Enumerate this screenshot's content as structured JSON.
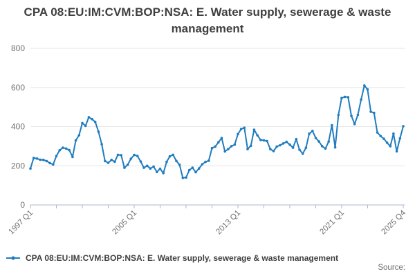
{
  "title": "CPA 08:EU:IM:CVM:BOP:NSA: E. Water supply, sewerage & waste management",
  "source_label": "Source:",
  "legend": {
    "label": "CPA 08:EU:IM:CVM:BOP:NSA: E. Water supply, sewerage & waste management"
  },
  "colors": {
    "line": "#1f7cbf",
    "grid": "#e6e6e6",
    "axis": "#aeb6cf",
    "title_text": "#3f3f42",
    "tick_text": "#707070"
  },
  "chart_data": {
    "type": "line",
    "title": "CPA 08:EU:IM:CVM:BOP:NSA: E. Water supply, sewerage & waste management",
    "xlabel": "",
    "ylabel": "",
    "grid": "horizontal-only",
    "legend_position": "bottom-left",
    "x_axis": {
      "start": "1997 Q1",
      "end": "2025 Q4",
      "frequency": "quarterly",
      "num_points": 116,
      "tick_labels": [
        "1997 Q1",
        "2005 Q1",
        "2013 Q1",
        "2021 Q1",
        "2025 Q4"
      ],
      "tick_label_indices": [
        0,
        32,
        64,
        96,
        115
      ],
      "minor_tick_indices": [
        0,
        8,
        16,
        24,
        32,
        40,
        48,
        56,
        64,
        72,
        80,
        88,
        96,
        104,
        115
      ]
    },
    "y_axis": {
      "ticks": [
        0,
        200,
        400,
        600,
        800
      ],
      "range": [
        0,
        800
      ]
    },
    "series": [
      {
        "name": "CPA 08:EU:IM:CVM:BOP:NSA: E. Water supply, sewerage & waste management",
        "values": [
          186,
          240,
          237,
          231,
          230,
          224,
          214,
          206,
          250,
          279,
          292,
          288,
          280,
          245,
          330,
          356,
          418,
          404,
          448,
          438,
          424,
          374,
          310,
          224,
          215,
          230,
          221,
          256,
          254,
          190,
          205,
          236,
          255,
          250,
          222,
          190,
          200,
          186,
          196,
          168,
          185,
          162,
          220,
          248,
          256,
          225,
          205,
          138,
          140,
          178,
          190,
          167,
          186,
          208,
          220,
          226,
          290,
          298,
          320,
          342,
          273,
          285,
          300,
          308,
          362,
          388,
          394,
          285,
          302,
          384,
          356,
          332,
          330,
          326,
          285,
          275,
          298,
          305,
          314,
          322,
          308,
          292,
          336,
          282,
          262,
          292,
          364,
          378,
          342,
          324,
          300,
          288,
          324,
          407,
          294,
          460,
          546,
          552,
          550,
          455,
          413,
          460,
          538,
          610,
          590,
          476,
          470,
          370,
          352,
          338,
          318,
          300,
          364,
          274,
          340,
          402
        ]
      }
    ]
  }
}
